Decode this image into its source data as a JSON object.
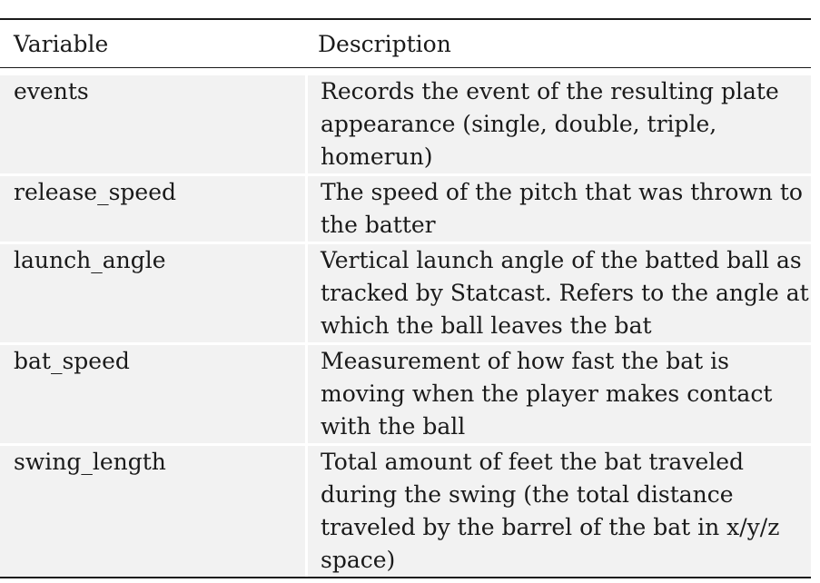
{
  "table": {
    "headers": {
      "variable": "Variable",
      "description": "Description"
    },
    "rows": [
      {
        "variable": "events",
        "description": "Records the event of the resulting plate appearance (single, double, triple, homerun)"
      },
      {
        "variable": "release_speed",
        "description": "The speed of the pitch that was thrown to the batter"
      },
      {
        "variable": "launch_angle",
        "description": "Vertical launch angle of the batted ball as tracked by Statcast. Refers to the angle at which the ball leaves the bat"
      },
      {
        "variable": "bat_speed",
        "description": "Measurement of how fast the bat is moving when the player makes contact with the ball"
      },
      {
        "variable": "swing_length",
        "description": "Total amount of feet the bat traveled during the swing (the total distance traveled by the barrel of the bat in x/y/z space)"
      }
    ]
  }
}
